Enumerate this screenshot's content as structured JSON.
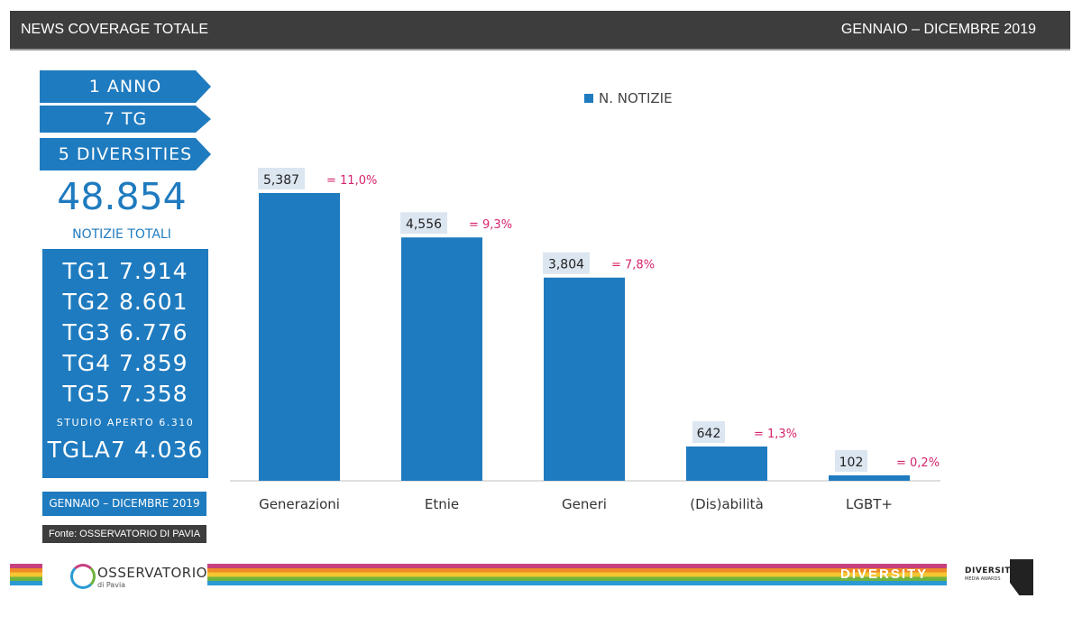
{
  "header": {
    "title": "NEWS COVERAGE TOTALE",
    "period": "GENNAIO – DICEMBRE 2019"
  },
  "sidebar": {
    "arrows": [
      "1 ANNO",
      "7 TG",
      "5 DIVERSITIES"
    ],
    "total_number": "48.854",
    "total_label": "NOTIZIE TOTALI",
    "tg_lines": [
      "TG1 7.914",
      "TG2 8.601",
      "TG3 6.776",
      "TG4 7.859",
      "TG5 7.358"
    ],
    "tg_small": "STUDIO APERTO 6.310",
    "tg_last": "TGLA7 4.036",
    "period": "GENNAIO – DICEMBRE 2019",
    "source": "Fonte: OSSERVATORIO DI PAVIA"
  },
  "chart_data": {
    "type": "bar",
    "categories": [
      "Generazioni",
      "Etnie",
      "Generi",
      "(Dis)abilità",
      "LGBT+"
    ],
    "series": [
      {
        "name": "N. NOTIZIE",
        "values": [
          5387,
          4556,
          3804,
          642,
          102
        ],
        "labels": [
          "5,387",
          "4,556",
          "3,804",
          "642",
          "102"
        ],
        "percent_labels": [
          "= 11,0%",
          "= 9,3%",
          "= 7,8%",
          "= 1,3%",
          "= 0,2%"
        ]
      }
    ],
    "ylim": [
      0,
      5387
    ],
    "grid": false,
    "legend": "top",
    "colors": {
      "bar": "#1f7bbf",
      "value_box": "#dce6f1",
      "percent": "#d6246e"
    }
  },
  "footer": {
    "logo_left_title": "OSSERVATORIO",
    "logo_left_sub": "di Pavia",
    "diversity_word": "DIVERSITY",
    "awards_title": "DIVERSITY",
    "awards_sub": "MEDIA AWARDS"
  }
}
